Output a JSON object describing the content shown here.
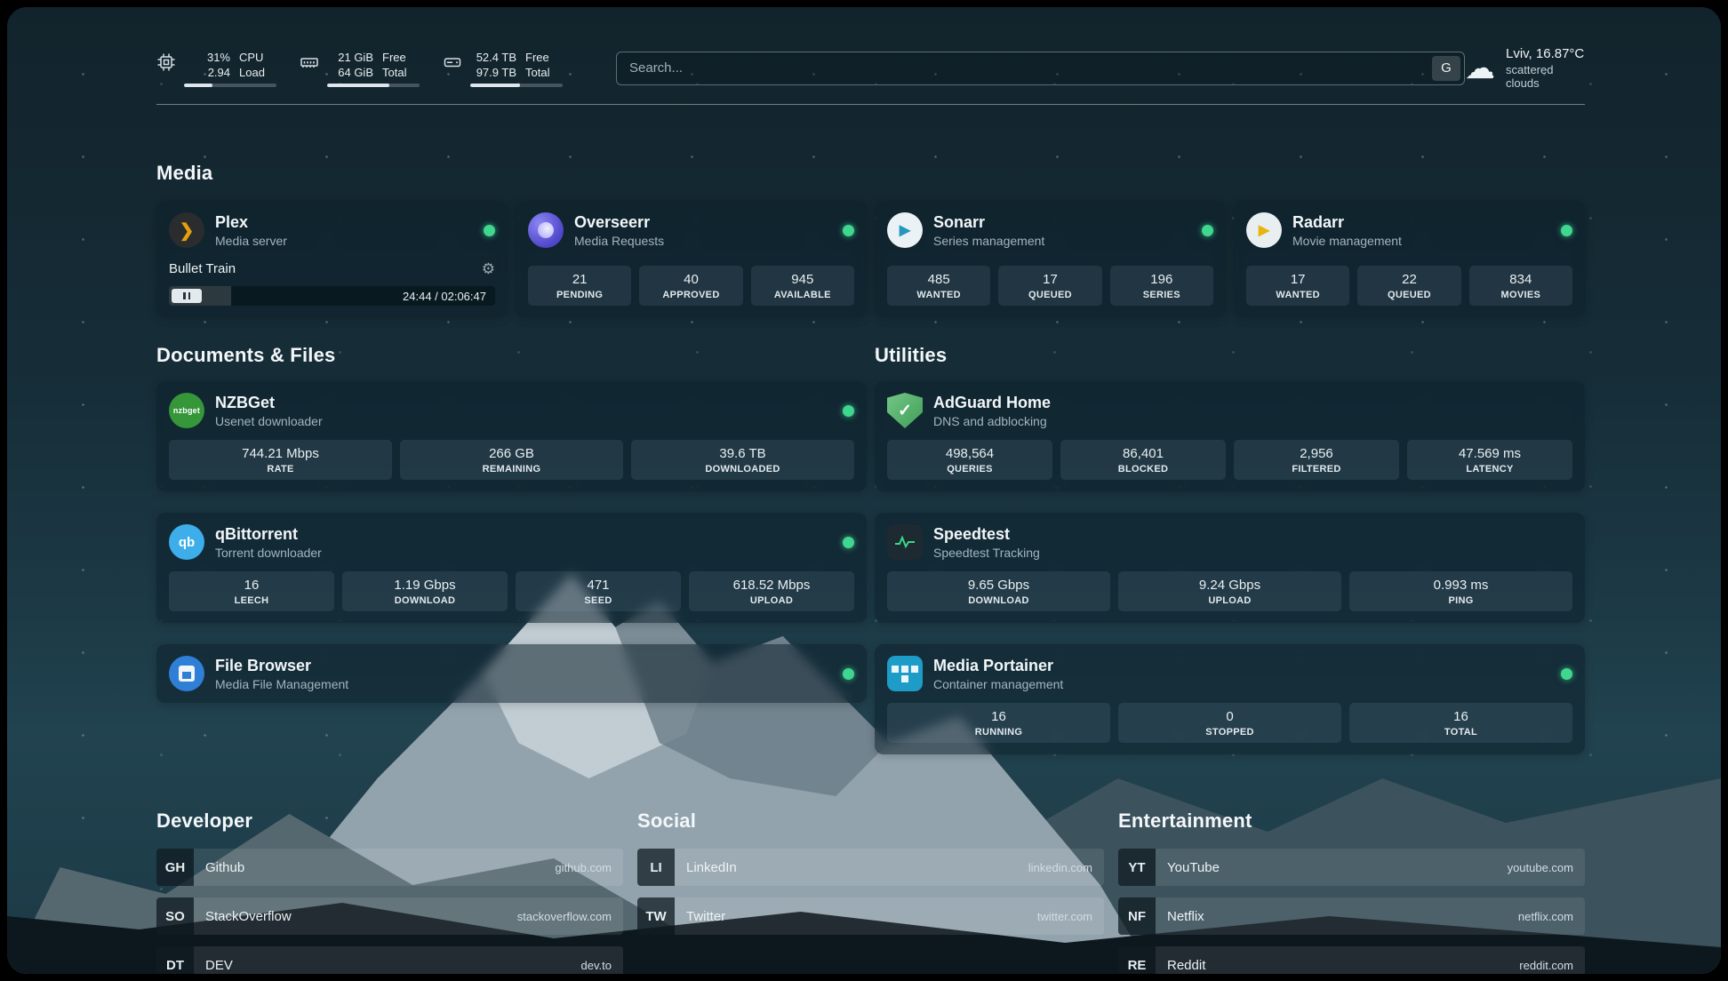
{
  "colors": {
    "status_online": "#3fd68f",
    "plex_gold": "#e5a00d",
    "overseerr_purple": "#4f46c9",
    "sonarr_blue": "#2596be",
    "radarr_gold": "#e8b410",
    "nzbget_green": "#35963a",
    "qbittorrent_blue": "#3daee9",
    "adguard_green": "#3f9e56",
    "filebrowser_blue": "#2f7fd6",
    "portainer_blue": "#1d9cc8",
    "speedtest_green": "#39d98a"
  },
  "topbar": {
    "cpu": {
      "pct": "31%",
      "load": "2.94",
      "l1": "CPU",
      "l2": "Load",
      "progress": 31
    },
    "ram": {
      "v1": "21 GiB",
      "v2": "64 GiB",
      "l1": "Free",
      "l2": "Total",
      "progress": 67
    },
    "disk": {
      "v1": "52.4 TB",
      "v2": "97.9 TB",
      "l1": "Free",
      "l2": "Total",
      "progress": 54
    },
    "search": {
      "placeholder": "Search...",
      "engine": "G"
    },
    "weather": {
      "location": "Lviv, 16.87°C",
      "condition": "scattered clouds"
    }
  },
  "media": {
    "title": "Media",
    "cards": [
      {
        "name": "Plex",
        "subtitle": "Media server",
        "player": {
          "title": "Bullet Train",
          "time": "24:44 / 02:06:47",
          "progress": 19
        }
      },
      {
        "name": "Overseerr",
        "subtitle": "Media Requests",
        "stats": [
          {
            "value": "21",
            "label": "PENDING"
          },
          {
            "value": "40",
            "label": "APPROVED"
          },
          {
            "value": "945",
            "label": "AVAILABLE"
          }
        ]
      },
      {
        "name": "Sonarr",
        "subtitle": "Series management",
        "stats": [
          {
            "value": "485",
            "label": "WANTED"
          },
          {
            "value": "17",
            "label": "QUEUED"
          },
          {
            "value": "196",
            "label": "SERIES"
          }
        ]
      },
      {
        "name": "Radarr",
        "subtitle": "Movie management",
        "stats": [
          {
            "value": "17",
            "label": "WANTED"
          },
          {
            "value": "22",
            "label": "QUEUED"
          },
          {
            "value": "834",
            "label": "MOVIES"
          }
        ]
      }
    ]
  },
  "documents": {
    "title": "Documents & Files",
    "cards": [
      {
        "name": "NZBGet",
        "subtitle": "Usenet downloader",
        "icon_text": "nzbget",
        "stats": [
          {
            "value": "744.21 Mbps",
            "label": "RATE"
          },
          {
            "value": "266 GB",
            "label": "REMAINING"
          },
          {
            "value": "39.6 TB",
            "label": "DOWNLOADED"
          }
        ]
      },
      {
        "name": "qBittorrent",
        "subtitle": "Torrent downloader",
        "icon_text": "qb",
        "stats": [
          {
            "value": "16",
            "label": "LEECH"
          },
          {
            "value": "1.19 Gbps",
            "label": "DOWNLOAD"
          },
          {
            "value": "471",
            "label": "SEED"
          },
          {
            "value": "618.52 Mbps",
            "label": "UPLOAD"
          }
        ]
      },
      {
        "name": "File Browser",
        "subtitle": "Media File Management"
      }
    ]
  },
  "utilities": {
    "title": "Utilities",
    "cards": [
      {
        "name": "AdGuard Home",
        "subtitle": "DNS and adblocking",
        "stats": [
          {
            "value": "498,564",
            "label": "QUERIES"
          },
          {
            "value": "86,401",
            "label": "BLOCKED"
          },
          {
            "value": "2,956",
            "label": "FILTERED"
          },
          {
            "value": "47.569 ms",
            "label": "LATENCY"
          }
        ]
      },
      {
        "name": "Speedtest",
        "subtitle": "Speedtest Tracking",
        "stats": [
          {
            "value": "9.65 Gbps",
            "label": "DOWNLOAD"
          },
          {
            "value": "9.24 Gbps",
            "label": "UPLOAD"
          },
          {
            "value": "0.993 ms",
            "label": "PING"
          }
        ]
      },
      {
        "name": "Media Portainer",
        "subtitle": "Container management",
        "stats": [
          {
            "value": "16",
            "label": "RUNNING"
          },
          {
            "value": "0",
            "label": "STOPPED"
          },
          {
            "value": "16",
            "label": "TOTAL"
          }
        ]
      }
    ]
  },
  "links": {
    "developer": {
      "title": "Developer",
      "items": [
        {
          "abbr": "GH",
          "name": "Github",
          "url": "github.com"
        },
        {
          "abbr": "SO",
          "name": "StackOverflow",
          "url": "stackoverflow.com"
        },
        {
          "abbr": "DT",
          "name": "DEV",
          "url": "dev.to"
        }
      ]
    },
    "social": {
      "title": "Social",
      "items": [
        {
          "abbr": "LI",
          "name": "LinkedIn",
          "url": "linkedin.com"
        },
        {
          "abbr": "TW",
          "name": "Twitter",
          "url": "twitter.com"
        }
      ]
    },
    "entertainment": {
      "title": "Entertainment",
      "items": [
        {
          "abbr": "YT",
          "name": "YouTube",
          "url": "youtube.com"
        },
        {
          "abbr": "NF",
          "name": "Netflix",
          "url": "netflix.com"
        },
        {
          "abbr": "RE",
          "name": "Reddit",
          "url": "reddit.com"
        }
      ]
    }
  }
}
